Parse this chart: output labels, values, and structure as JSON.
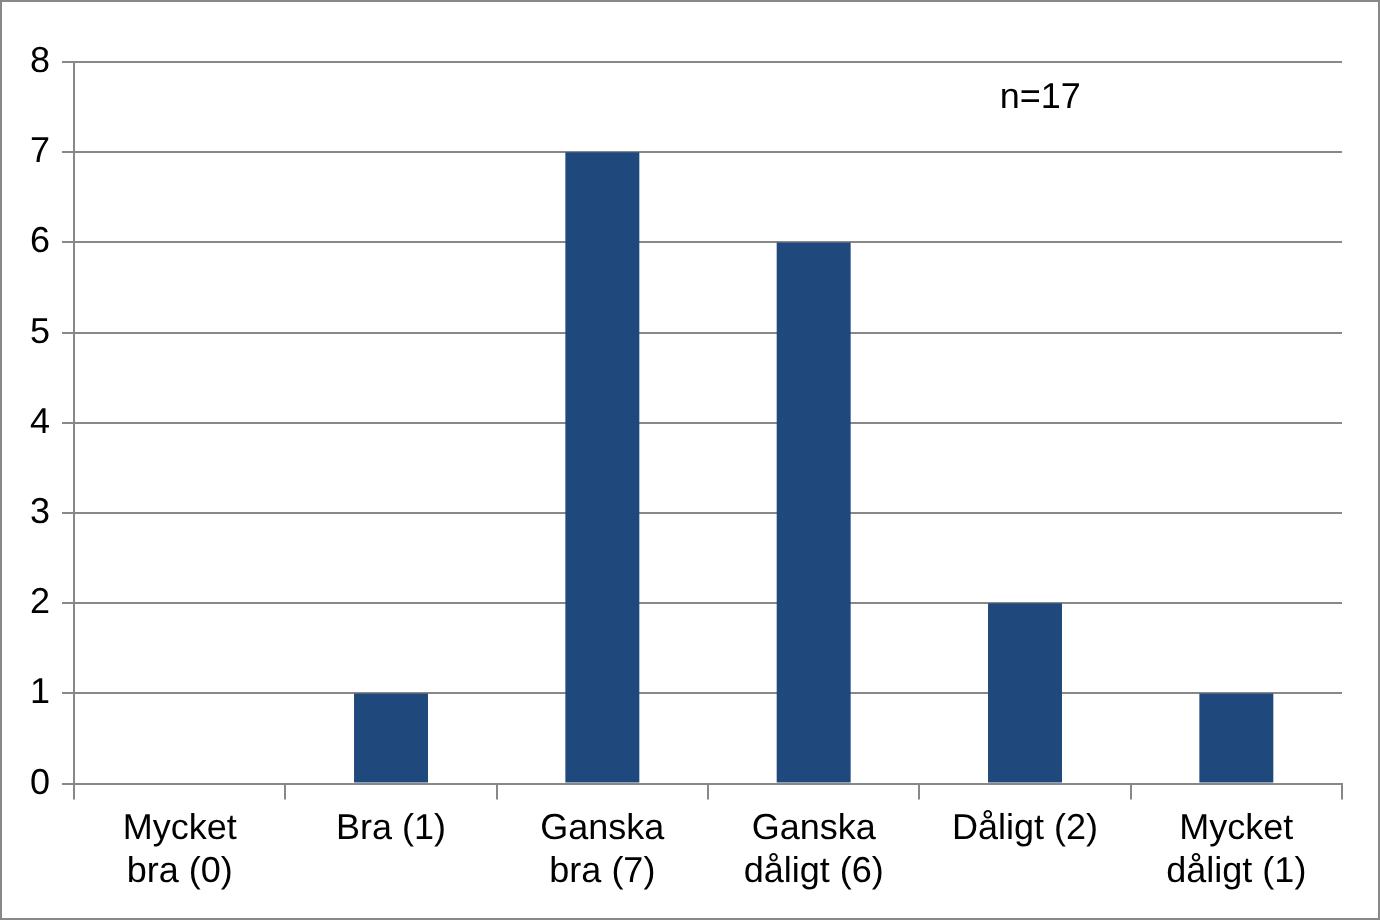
{
  "chart_data": {
    "type": "bar",
    "categories": [
      "Mycket bra (0)",
      "Bra (1)",
      "Ganska bra (7)",
      "Ganska dåligt (6)",
      "Dåligt (2)",
      "Mycket dåligt (1)"
    ],
    "values": [
      0,
      1,
      7,
      6,
      2,
      1
    ],
    "color": "#1f497d",
    "ylim": [
      0,
      8
    ],
    "yticks": [
      0,
      1,
      2,
      3,
      4,
      5,
      6,
      7,
      8
    ],
    "grid": "y",
    "annotations": [
      "n=17"
    ]
  }
}
